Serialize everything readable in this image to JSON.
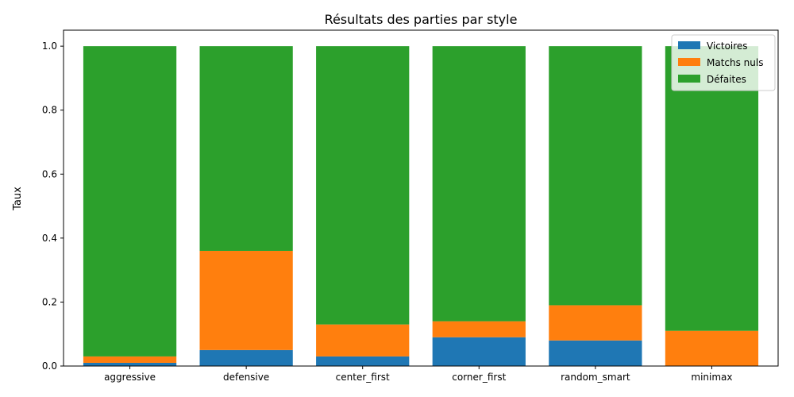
{
  "chart_data": {
    "type": "bar",
    "stacked": true,
    "title": "Résultats des parties par style",
    "xlabel": "",
    "ylabel": "Taux",
    "ylim": [
      0,
      1.05
    ],
    "yticks": [
      0.0,
      0.2,
      0.4,
      0.6,
      0.8,
      1.0
    ],
    "ytick_labels": [
      "0.0",
      "0.2",
      "0.4",
      "0.6",
      "0.8",
      "1.0"
    ],
    "grid": false,
    "legend_position": "top-right",
    "categories": [
      "aggressive",
      "defensive",
      "center_first",
      "corner_first",
      "random_smart",
      "minimax"
    ],
    "series": [
      {
        "name": "Victoires",
        "color": "#1f77b4",
        "values": [
          0.01,
          0.05,
          0.03,
          0.09,
          0.08,
          0.0
        ]
      },
      {
        "name": "Matchs nuls",
        "color": "#ff7f0e",
        "values": [
          0.02,
          0.31,
          0.1,
          0.05,
          0.11,
          0.11
        ]
      },
      {
        "name": "Défaites",
        "color": "#2ca02c",
        "values": [
          0.97,
          0.64,
          0.87,
          0.86,
          0.81,
          0.89
        ]
      }
    ]
  }
}
